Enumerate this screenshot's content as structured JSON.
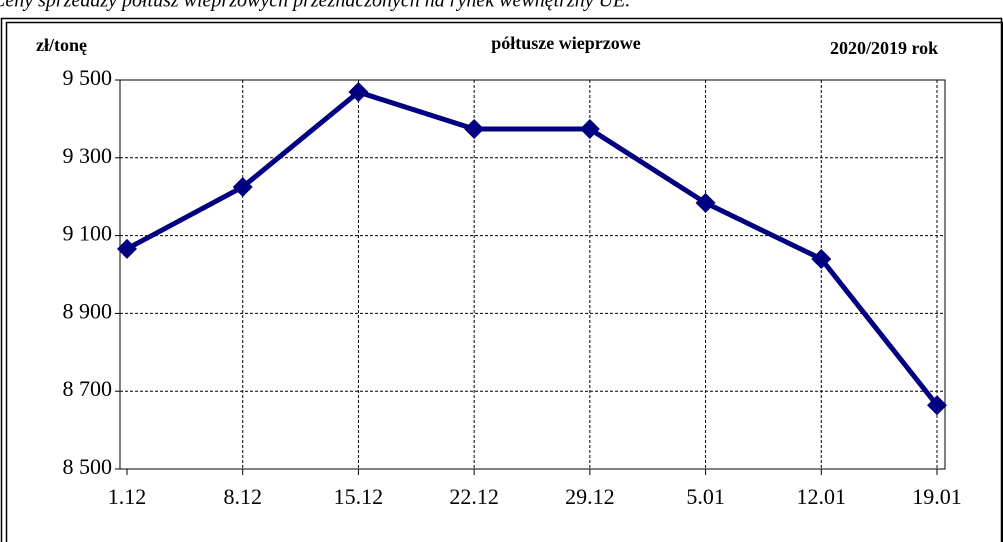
{
  "chart_data": {
    "type": "line",
    "caption": "Ceny sprzedaży półtusz wieprzowych przeznaczonych na rynek wewnętrzny UE.",
    "title": "półtusze wieprzowe",
    "subtitle": "2020/2019 rok",
    "y_label": "zł/tonę",
    "categories": [
      "1.12",
      "8.12",
      "15.12",
      "22.12",
      "29.12",
      "5.01",
      "12.01",
      "19.01"
    ],
    "series": [
      {
        "name": "półtusze wieprzowe",
        "color": "#000080",
        "values": [
          9066,
          9225,
          9469,
          9374,
          9374,
          9184,
          9040,
          8664
        ]
      }
    ],
    "ylim": [
      8500,
      9500
    ],
    "yticks": [
      {
        "value": 8500,
        "label": "8 500"
      },
      {
        "value": 8700,
        "label": "8 700"
      },
      {
        "value": 8900,
        "label": "8 900"
      },
      {
        "value": 9100,
        "label": "9 100"
      },
      {
        "value": 9300,
        "label": "9 300"
      },
      {
        "value": 9500,
        "label": "9 500"
      }
    ],
    "grid": true
  }
}
